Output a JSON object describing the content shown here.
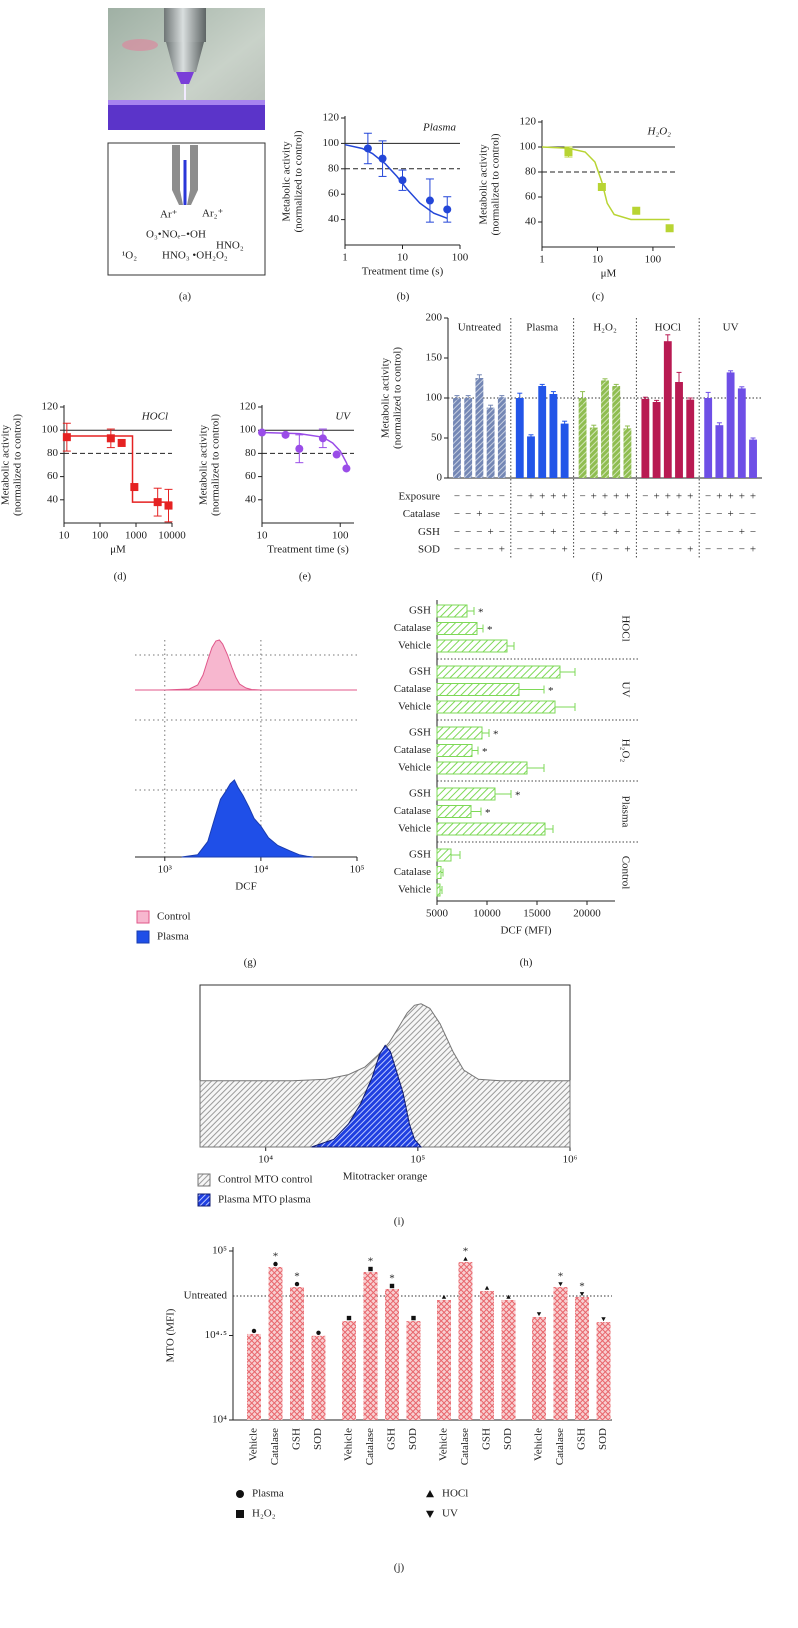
{
  "panel_a": {
    "label": "(a)",
    "schematic": [
      "Ar⁺",
      "Ar₂⁺",
      "O₃•NOₑ₋•OH",
      "HNO₂",
      "¹O₂",
      "HNO₃ •OH₂O₂"
    ]
  },
  "chart_data": [
    {
      "type": "doseresponse",
      "label": "(b)",
      "title": "Plasma",
      "xlabel": "Treatment time (s)",
      "ylabel": [
        "Metabolic activity",
        "(normalized to control)"
      ],
      "xlog": true,
      "xlim": [
        1,
        100
      ],
      "xticks": [
        1,
        10,
        100
      ],
      "ylim": [
        20,
        120
      ],
      "yticks": [
        40,
        60,
        80,
        100,
        120
      ],
      "hlines": [
        {
          "value": 100,
          "style": "solid"
        },
        {
          "value": 80,
          "style": "dashed"
        }
      ],
      "color": "#2346d8",
      "points": {
        "marker": "circle",
        "x": [
          2.5,
          4.5,
          10,
          30,
          60
        ],
        "values": [
          96,
          88,
          71,
          55,
          48
        ],
        "errors": [
          12,
          14,
          8,
          17,
          10
        ]
      },
      "fit": {
        "x": [
          1,
          2,
          3,
          5,
          8,
          12,
          20,
          35,
          60
        ],
        "values": [
          99,
          96,
          92,
          84,
          74,
          64,
          53,
          45,
          41
        ]
      }
    },
    {
      "type": "doseresponse",
      "label": "(c)",
      "title": "H₂O₂",
      "xlabel": "μM",
      "ylabel": [
        "Metabolic activity",
        "(normalized to control)"
      ],
      "xlog": true,
      "xlim": [
        1,
        250
      ],
      "xticks": [
        1,
        10,
        100
      ],
      "ylim": [
        20,
        120
      ],
      "yticks": [
        40,
        60,
        80,
        100,
        120
      ],
      "hlines": [
        {
          "value": 100,
          "style": "solid"
        },
        {
          "value": 80,
          "style": "dashed"
        }
      ],
      "color": "#b8d433",
      "points": {
        "marker": "square",
        "x": [
          3,
          12,
          50,
          200
        ],
        "values": [
          96,
          68,
          49,
          35
        ],
        "errors": [
          4,
          null,
          null,
          null
        ]
      },
      "fit": {
        "x": [
          1,
          3,
          6,
          9,
          12,
          15,
          20,
          40,
          200
        ],
        "values": [
          100,
          99,
          96,
          88,
          72,
          55,
          46,
          42,
          42
        ]
      }
    },
    {
      "type": "doseresponse",
      "label": "(d)",
      "title": "HOCl",
      "xlabel": "μM",
      "ylabel": [
        "Metabolic activity",
        "(normalized to control)"
      ],
      "xlog": true,
      "xlim": [
        10,
        10000
      ],
      "xticks": [
        10,
        100,
        1000,
        10000
      ],
      "ylim": [
        20,
        120
      ],
      "yticks": [
        40,
        60,
        80,
        100,
        120
      ],
      "hlines": [
        {
          "value": 100,
          "style": "solid"
        },
        {
          "value": 80,
          "style": "dashed"
        }
      ],
      "color": "#e52222",
      "points": {
        "marker": "square",
        "x": [
          12,
          200,
          400,
          900,
          4000,
          8000
        ],
        "values": [
          94,
          93,
          89,
          51,
          38,
          35
        ],
        "errors": [
          12,
          8,
          null,
          null,
          12,
          14
        ]
      },
      "fit": {
        "x": [
          12,
          800,
          800,
          10000
        ],
        "values": [
          95,
          95,
          38,
          38
        ]
      }
    },
    {
      "type": "doseresponse",
      "label": "(e)",
      "title": "UV",
      "xlabel": "Treatment time (s)",
      "ylabel": [
        "Metabolic activity",
        "(normalized to control)"
      ],
      "xlog": true,
      "xlim": [
        10,
        150
      ],
      "xticks": [
        10,
        100
      ],
      "ylim": [
        20,
        120
      ],
      "yticks": [
        40,
        60,
        80,
        100,
        120
      ],
      "hlines": [
        {
          "value": 100,
          "style": "solid"
        },
        {
          "value": 80,
          "style": "dashed"
        }
      ],
      "color": "#9a4de8",
      "points": {
        "marker": "circle",
        "x": [
          10,
          20,
          30,
          60,
          90,
          120
        ],
        "values": [
          98,
          96,
          84,
          93,
          79,
          67
        ],
        "errors": [
          null,
          null,
          12,
          8,
          null,
          null
        ]
      },
      "fit": {
        "x": [
          10,
          30,
          60,
          80,
          100,
          120,
          130
        ],
        "values": [
          98,
          97,
          94,
          89,
          82,
          72,
          66
        ]
      }
    },
    {
      "type": "groupedbar",
      "label": "(f)",
      "ylabel": [
        "Metabolic activity",
        "(normalized to control)"
      ],
      "ylim": [
        0,
        200
      ],
      "yticks": [
        0,
        50,
        100,
        150,
        200
      ],
      "hlines": [
        {
          "value": 100,
          "style": "dotted"
        }
      ],
      "groups": [
        {
          "name": "Untreated",
          "color": "#7487b5",
          "hatch": true,
          "values": [
            100,
            100,
            125,
            88,
            101
          ],
          "errors": [
            3,
            3,
            4,
            3,
            2
          ]
        },
        {
          "name": "Plasma",
          "color": "#2255e8",
          "hatch": false,
          "values": [
            100,
            52,
            115,
            105,
            68
          ],
          "errors": [
            6,
            2,
            2,
            3,
            3
          ]
        },
        {
          "name": "H₂O₂",
          "color": "#8fbd50",
          "hatch": true,
          "values": [
            100,
            63,
            122,
            115,
            62
          ],
          "errors": [
            8,
            3,
            2,
            2,
            3
          ]
        },
        {
          "name": "HOCl",
          "color": "#b81a52",
          "hatch": false,
          "values": [
            99,
            95,
            171,
            120,
            98
          ],
          "errors": [
            2,
            2,
            8,
            12,
            2
          ]
        },
        {
          "name": "UV",
          "color": "#6e4fe6",
          "hatch": false,
          "values": [
            100,
            66,
            132,
            112,
            48
          ],
          "errors": [
            7,
            3,
            2,
            2,
            2
          ]
        }
      ],
      "table": [
        {
          "name": "Exposure",
          "cells": [
            "−",
            "−",
            "−",
            "−",
            "−",
            "−",
            "+",
            "+",
            "+",
            "+",
            "−",
            "+",
            "+",
            "+",
            "+",
            "−",
            "+",
            "+",
            "+",
            "+",
            "−",
            "+",
            "+",
            "+",
            "+"
          ]
        },
        {
          "name": "Catalase",
          "cells": [
            "−",
            "−",
            "+",
            "−",
            "−",
            "−",
            "−",
            "+",
            "−",
            "−",
            "−",
            "−",
            "+",
            "−",
            "−",
            "−",
            "−",
            "+",
            "−",
            "−",
            "−",
            "−",
            "+",
            "−",
            "−"
          ]
        },
        {
          "name": "GSH",
          "cells": [
            "−",
            "−",
            "−",
            "+",
            "−",
            "−",
            "−",
            "−",
            "+",
            "−",
            "−",
            "−",
            "−",
            "+",
            "−",
            "−",
            "−",
            "−",
            "+",
            "−",
            "−",
            "−",
            "−",
            "+",
            "−"
          ]
        },
        {
          "name": "SOD",
          "cells": [
            "−",
            "−",
            "−",
            "−",
            "+",
            "−",
            "−",
            "−",
            "−",
            "+",
            "−",
            "−",
            "−",
            "−",
            "+",
            "−",
            "−",
            "−",
            "−",
            "+",
            "−",
            "−",
            "−",
            "−",
            "+"
          ]
        }
      ]
    },
    {
      "type": "density",
      "label": "(g)",
      "xlabel": "DCF",
      "layout": "stacked",
      "grid": true,
      "xlog": true,
      "xlim": [
        490,
        100000
      ],
      "xticks": [
        {
          "value": 1000,
          "label": "10³"
        },
        {
          "value": 10000,
          "label": "10⁴"
        },
        {
          "value": 100000,
          "label": "10⁵"
        }
      ],
      "ylim": [
        0,
        100
      ],
      "series": [
        {
          "name": "Control",
          "color": "#f7b7cf",
          "outline": "#e0578a",
          "hatch": false,
          "x": [
            490,
            1000,
            1800,
            2200,
            2500,
            2800,
            3100,
            3400,
            3700,
            4000,
            4500,
            5000,
            5500,
            6000,
            7000,
            8000,
            10000,
            100000
          ],
          "values": [
            0,
            0,
            2,
            10,
            30,
            60,
            85,
            98,
            100,
            92,
            70,
            45,
            25,
            12,
            4,
            1,
            0,
            0
          ]
        },
        {
          "name": "Plasma",
          "color": "#1f4fe8",
          "outline": "#1a3cb0",
          "hatch": false,
          "x": [
            1500,
            2200,
            2800,
            3300,
            3800,
            4300,
            4800,
            5300,
            5800,
            6500,
            7500,
            8500,
            10000,
            12000,
            15000,
            20000,
            25000,
            30000,
            35000
          ],
          "values": [
            0,
            3,
            20,
            50,
            75,
            85,
            95,
            100,
            90,
            80,
            65,
            50,
            40,
            25,
            15,
            8,
            3,
            1,
            0
          ]
        }
      ]
    },
    {
      "type": "hbar",
      "label": "(h)",
      "xlabel": "DCF (MFI)",
      "xlim": [
        5000,
        22800
      ],
      "xticks": [
        5000,
        10000,
        15000,
        20000
      ],
      "color": "#7ed957",
      "groups": [
        {
          "name": "HOCl",
          "categories": [
            "GSH",
            "Catalase",
            "Vehicle"
          ],
          "values": [
            8000,
            9000,
            12000
          ],
          "errors": [
            700,
            600,
            700
          ],
          "stars": [
            "*",
            "*",
            null
          ]
        },
        {
          "name": "UV",
          "categories": [
            "GSH",
            "Catalase",
            "Vehicle"
          ],
          "values": [
            17300,
            13200,
            16800
          ],
          "errors": [
            1500,
            2500,
            2000
          ],
          "stars": [
            null,
            "*",
            null
          ]
        },
        {
          "name": "H₂O₂",
          "categories": [
            "GSH",
            "Catalase",
            "Vehicle"
          ],
          "values": [
            9500,
            8500,
            14000
          ],
          "errors": [
            700,
            600,
            1700
          ],
          "stars": [
            "*",
            "*",
            null
          ]
        },
        {
          "name": "Plasma",
          "categories": [
            "GSH",
            "Catalase",
            "Vehicle"
          ],
          "values": [
            10800,
            8400,
            15800
          ],
          "errors": [
            1600,
            1000,
            800
          ],
          "stars": [
            "*",
            "*",
            null
          ]
        },
        {
          "name": "Control",
          "categories": [
            "GSH",
            "Catalase",
            "Vehicle"
          ],
          "values": [
            6400,
            5400,
            5300
          ],
          "errors": [
            900,
            200,
            200
          ],
          "stars": [
            null,
            null,
            null
          ]
        }
      ]
    },
    {
      "type": "density",
      "label": "(i)",
      "xlabel": "Mitotracker orange",
      "layout": "overlay",
      "grid": false,
      "xlog": true,
      "xlim": [
        3700,
        1000000
      ],
      "xticks": [
        {
          "value": 10000,
          "label": "10⁴"
        },
        {
          "value": 100000,
          "label": "10⁵"
        },
        {
          "value": 1000000,
          "label": "10⁶"
        }
      ],
      "ylim": [
        0,
        100
      ],
      "series": [
        {
          "name": "Control MTO control",
          "color": "#f6f6f6",
          "hatch_color": "#9a9a9a",
          "outline": "#777777",
          "hatch": true,
          "x": [
            3700,
            15000,
            25000,
            35000,
            45000,
            55000,
            65000,
            75000,
            85000,
            95000,
            105000,
            120000,
            140000,
            170000,
            200000,
            250000,
            350000,
            1000000
          ],
          "values": [
            43,
            43,
            44,
            47,
            52,
            60,
            68,
            78,
            87,
            92,
            93,
            90,
            80,
            62,
            50,
            44,
            43,
            43
          ]
        },
        {
          "name": "Plasma MTO plasma",
          "color": "#1f3fe0",
          "hatch_color": "#b9c6ff",
          "outline": "#101c70",
          "hatch": true,
          "x": [
            20000,
            28000,
            35000,
            42000,
            50000,
            56000,
            61000,
            66000,
            72000,
            80000,
            88000,
            95000,
            105000
          ],
          "values": [
            0,
            5,
            15,
            28,
            45,
            60,
            66,
            62,
            50,
            35,
            15,
            5,
            0
          ]
        }
      ]
    },
    {
      "type": "bar",
      "label": "(j)",
      "ylabel": "MTO (MFI)",
      "ylog": true,
      "ylim": [
        10000,
        100000
      ],
      "yticks": [
        {
          "value": 10000,
          "label": "10⁴"
        },
        {
          "value": 31623,
          "label": "10⁴·⁵"
        },
        {
          "value": 100000,
          "label": "10⁵"
        }
      ],
      "hlines": [
        {
          "value": 54200,
          "label": "Untreated",
          "style": "dotted"
        }
      ],
      "color": "#e8646a",
      "groups": [
        {
          "name": "Plasma",
          "marker": "circle",
          "categories": [
            "Vehicle",
            "Catalase",
            "GSH",
            "SOD"
          ],
          "values": [
            32300,
            80400,
            61200,
            31500
          ],
          "stars": [
            null,
            "*",
            "*",
            null
          ]
        },
        {
          "name": "H₂O₂",
          "marker": "square",
          "categories": [
            "Vehicle",
            "Catalase",
            "GSH",
            "SOD"
          ],
          "values": [
            38500,
            75100,
            59600,
            38500
          ],
          "stars": [
            null,
            "*",
            "*",
            null
          ]
        },
        {
          "name": "HOCl",
          "marker": "triangle-up",
          "categories": [
            "Vehicle",
            "Catalase",
            "GSH",
            "SOD"
          ],
          "values": [
            51300,
            86100,
            58000,
            51300
          ],
          "stars": [
            null,
            "*",
            null,
            null
          ]
        },
        {
          "name": "UV",
          "marker": "triangle-down",
          "categories": [
            "Vehicle",
            "Catalase",
            "GSH",
            "SOD"
          ],
          "values": [
            40700,
            61200,
            53500,
            38000
          ],
          "stars": [
            null,
            "*",
            "*",
            null
          ]
        }
      ]
    }
  ]
}
